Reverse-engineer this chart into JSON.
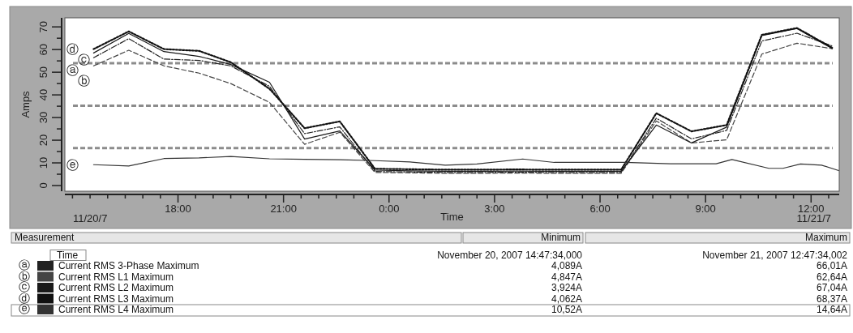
{
  "chart_data": {
    "type": "line",
    "xlabel": "Time",
    "ylabel": "Amps",
    "x": [
      "2007-11-20T15:36",
      "2007-11-20T16:36",
      "2007-11-20T17:36",
      "2007-11-20T18:36",
      "2007-11-20T19:30",
      "2007-11-20T20:36",
      "2007-11-20T21:36",
      "2007-11-20T22:36",
      "2007-11-20T23:36",
      "2007-11-21T00:36",
      "2007-11-21T01:36",
      "2007-11-21T02:36",
      "2007-11-21T03:36",
      "2007-11-21T04:36",
      "2007-11-21T05:36",
      "2007-11-21T06:36",
      "2007-11-21T07:36",
      "2007-11-21T08:36",
      "2007-11-21T09:36",
      "2007-11-21T10:36",
      "2007-11-21T11:36",
      "2007-11-21T12:36"
    ],
    "series": [
      {
        "name": "Current RMS 3-Phase Maximum",
        "color": "#222222",
        "line_style": "dashdot",
        "values": [
          56.4,
          64.8,
          55.8,
          55.2,
          52.8,
          43.8,
          22.9,
          25.9,
          6.2,
          6.0,
          5.8,
          5.8,
          5.9,
          5.8,
          5.8,
          5.8,
          29.7,
          20.6,
          24.3,
          63.8,
          67.2,
          61.6
        ]
      },
      {
        "name": "Current RMS L1 Maximum",
        "color": "#444444",
        "line_style": "dashed",
        "values": [
          52.8,
          59.7,
          52.8,
          49.6,
          45.0,
          36.7,
          18.2,
          23.5,
          5.8,
          5.6,
          5.4,
          5.4,
          5.5,
          5.4,
          5.4,
          5.4,
          28.5,
          18.8,
          20.2,
          58.0,
          62.8,
          60.4
        ]
      },
      {
        "name": "Current RMS L2 Maximum",
        "color": "#1a1a1a",
        "line_style": "solid",
        "values": [
          58.5,
          67.1,
          59.1,
          57.0,
          53.4,
          45.6,
          20.5,
          24.1,
          6.8,
          6.5,
          6.3,
          6.3,
          6.4,
          6.3,
          6.3,
          6.3,
          26.7,
          18.8,
          25.8,
          66.2,
          69.3,
          60.4
        ]
      },
      {
        "name": "Current RMS L3 Maximum",
        "color": "#111111",
        "line_style": "dotted",
        "values": [
          60.2,
          68.0,
          60.2,
          59.4,
          54.4,
          42.7,
          25.3,
          28.3,
          7.4,
          7.2,
          7.0,
          7.0,
          7.1,
          7.0,
          7.0,
          7.0,
          31.9,
          23.9,
          26.7,
          66.5,
          69.5,
          60.8
        ]
      },
      {
        "name": "Current RMS L4 Maximum",
        "color": "#333333",
        "line_style": "solid",
        "x": [
          "2007-11-20T15:36",
          "2007-11-20T16:36",
          "2007-11-20T17:36",
          "2007-11-20T18:36",
          "2007-11-20T19:30",
          "2007-11-20T20:36",
          "2007-11-20T21:36",
          "2007-11-20T22:36",
          "2007-11-20T23:36",
          "2007-11-21T00:36",
          "2007-11-21T01:36",
          "2007-11-21T02:30",
          "2007-11-21T03:48",
          "2007-11-21T04:42",
          "2007-11-21T06:42",
          "2007-11-21T08:00",
          "2007-11-21T09:18",
          "2007-11-21T09:45",
          "2007-11-21T10:48",
          "2007-11-21T11:12",
          "2007-11-21T11:42",
          "2007-11-21T12:18",
          "2007-11-21T12:47"
        ],
        "values": [
          9.2,
          8.6,
          11.9,
          12.2,
          12.8,
          11.8,
          11.6,
          11.4,
          11.0,
          10.4,
          9.0,
          9.5,
          11.7,
          10.2,
          10.2,
          9.6,
          9.6,
          11.5,
          7.6,
          7.6,
          9.5,
          9.0,
          6.6
        ]
      }
    ],
    "xlim": [
      "2007-11-20T14:47",
      "2007-11-21T12:48"
    ],
    "xticks": [
      {
        "value": "2007-11-20T15:00",
        "label": null
      },
      {
        "value": "2007-11-20T15:30",
        "label": null
      },
      {
        "value": "2007-11-20T16:00",
        "label": null
      },
      {
        "value": "2007-11-20T16:30",
        "label": null
      },
      {
        "value": "2007-11-20T17:00",
        "label": null
      },
      {
        "value": "2007-11-20T17:30",
        "label": null
      },
      {
        "value": "2007-11-20T18:00",
        "label": "18:00"
      },
      {
        "value": "2007-11-20T18:30",
        "label": null
      },
      {
        "value": "2007-11-20T19:00",
        "label": null
      },
      {
        "value": "2007-11-20T19:30",
        "label": null
      },
      {
        "value": "2007-11-20T20:00",
        "label": null
      },
      {
        "value": "2007-11-20T20:30",
        "label": null
      },
      {
        "value": "2007-11-20T21:00",
        "label": "21:00"
      },
      {
        "value": "2007-11-20T21:30",
        "label": null
      },
      {
        "value": "2007-11-20T22:00",
        "label": null
      },
      {
        "value": "2007-11-20T22:30",
        "label": null
      },
      {
        "value": "2007-11-20T23:00",
        "label": null
      },
      {
        "value": "2007-11-20T23:30",
        "label": null
      },
      {
        "value": "2007-11-21T00:00",
        "label": "0:00"
      },
      {
        "value": "2007-11-21T00:30",
        "label": null
      },
      {
        "value": "2007-11-21T01:00",
        "label": null
      },
      {
        "value": "2007-11-21T01:30",
        "label": null
      },
      {
        "value": "2007-11-21T02:00",
        "label": null
      },
      {
        "value": "2007-11-21T02:30",
        "label": null
      },
      {
        "value": "2007-11-21T03:00",
        "label": "3:00"
      },
      {
        "value": "2007-11-21T03:30",
        "label": null
      },
      {
        "value": "2007-11-21T04:00",
        "label": null
      },
      {
        "value": "2007-11-21T04:30",
        "label": null
      },
      {
        "value": "2007-11-21T05:00",
        "label": null
      },
      {
        "value": "2007-11-21T05:30",
        "label": null
      },
      {
        "value": "2007-11-21T06:00",
        "label": "6:00"
      },
      {
        "value": "2007-11-21T06:30",
        "label": null
      },
      {
        "value": "2007-11-21T07:00",
        "label": null
      },
      {
        "value": "2007-11-21T07:30",
        "label": null
      },
      {
        "value": "2007-11-21T08:00",
        "label": null
      },
      {
        "value": "2007-11-21T08:30",
        "label": null
      },
      {
        "value": "2007-11-21T09:00",
        "label": "9:00"
      },
      {
        "value": "2007-11-21T09:30",
        "label": null
      },
      {
        "value": "2007-11-21T10:00",
        "label": null
      },
      {
        "value": "2007-11-21T10:30",
        "label": null
      },
      {
        "value": "2007-11-21T11:00",
        "label": null
      },
      {
        "value": "2007-11-21T11:30",
        "label": null
      },
      {
        "value": "2007-11-21T12:00",
        "label": "12:00"
      },
      {
        "value": "2007-11-21T12:30",
        "label": null
      }
    ],
    "ylim": [
      -2.5,
      74
    ],
    "yticks": [
      0,
      {
        "value": 5,
        "label": null
      },
      10,
      {
        "value": 15,
        "label": null
      },
      20,
      {
        "value": 25,
        "label": null
      },
      30,
      {
        "value": 35,
        "label": null
      },
      40,
      {
        "value": 45,
        "label": null
      },
      50,
      {
        "value": 55,
        "label": null
      },
      60,
      {
        "value": 65,
        "label": null
      },
      70
    ],
    "ref_lines": [
      {
        "axis": "y",
        "value": 54,
        "color": "#8c8c8c",
        "line_style": "dashed"
      },
      {
        "axis": "y",
        "value": 35.2,
        "color": "#8c8c8c",
        "line_style": "dashed"
      },
      {
        "axis": "y",
        "value": 16.5,
        "color": "#8c8c8c",
        "line_style": "dashed"
      }
    ],
    "grid": false,
    "legend": "bottom",
    "annotations": [
      "11/20/7",
      "11/21/7",
      "ⓐ",
      "ⓑ",
      "ⓒ",
      "ⓓ",
      "ⓔ",
      "Measurement",
      "Minimum",
      "Maximum",
      "Time",
      "November 20, 2007 14:47:34,000",
      "November 21, 2007 12:47:34,002",
      "ⓐ",
      "4,089A",
      "66,01A",
      "ⓑ",
      "4,847A",
      "62,64A",
      "ⓒ",
      "3,924A",
      "67,04A",
      "ⓓ",
      "4,062A",
      "68,37A",
      "ⓔ",
      "10,52A",
      "14,64A"
    ]
  }
}
